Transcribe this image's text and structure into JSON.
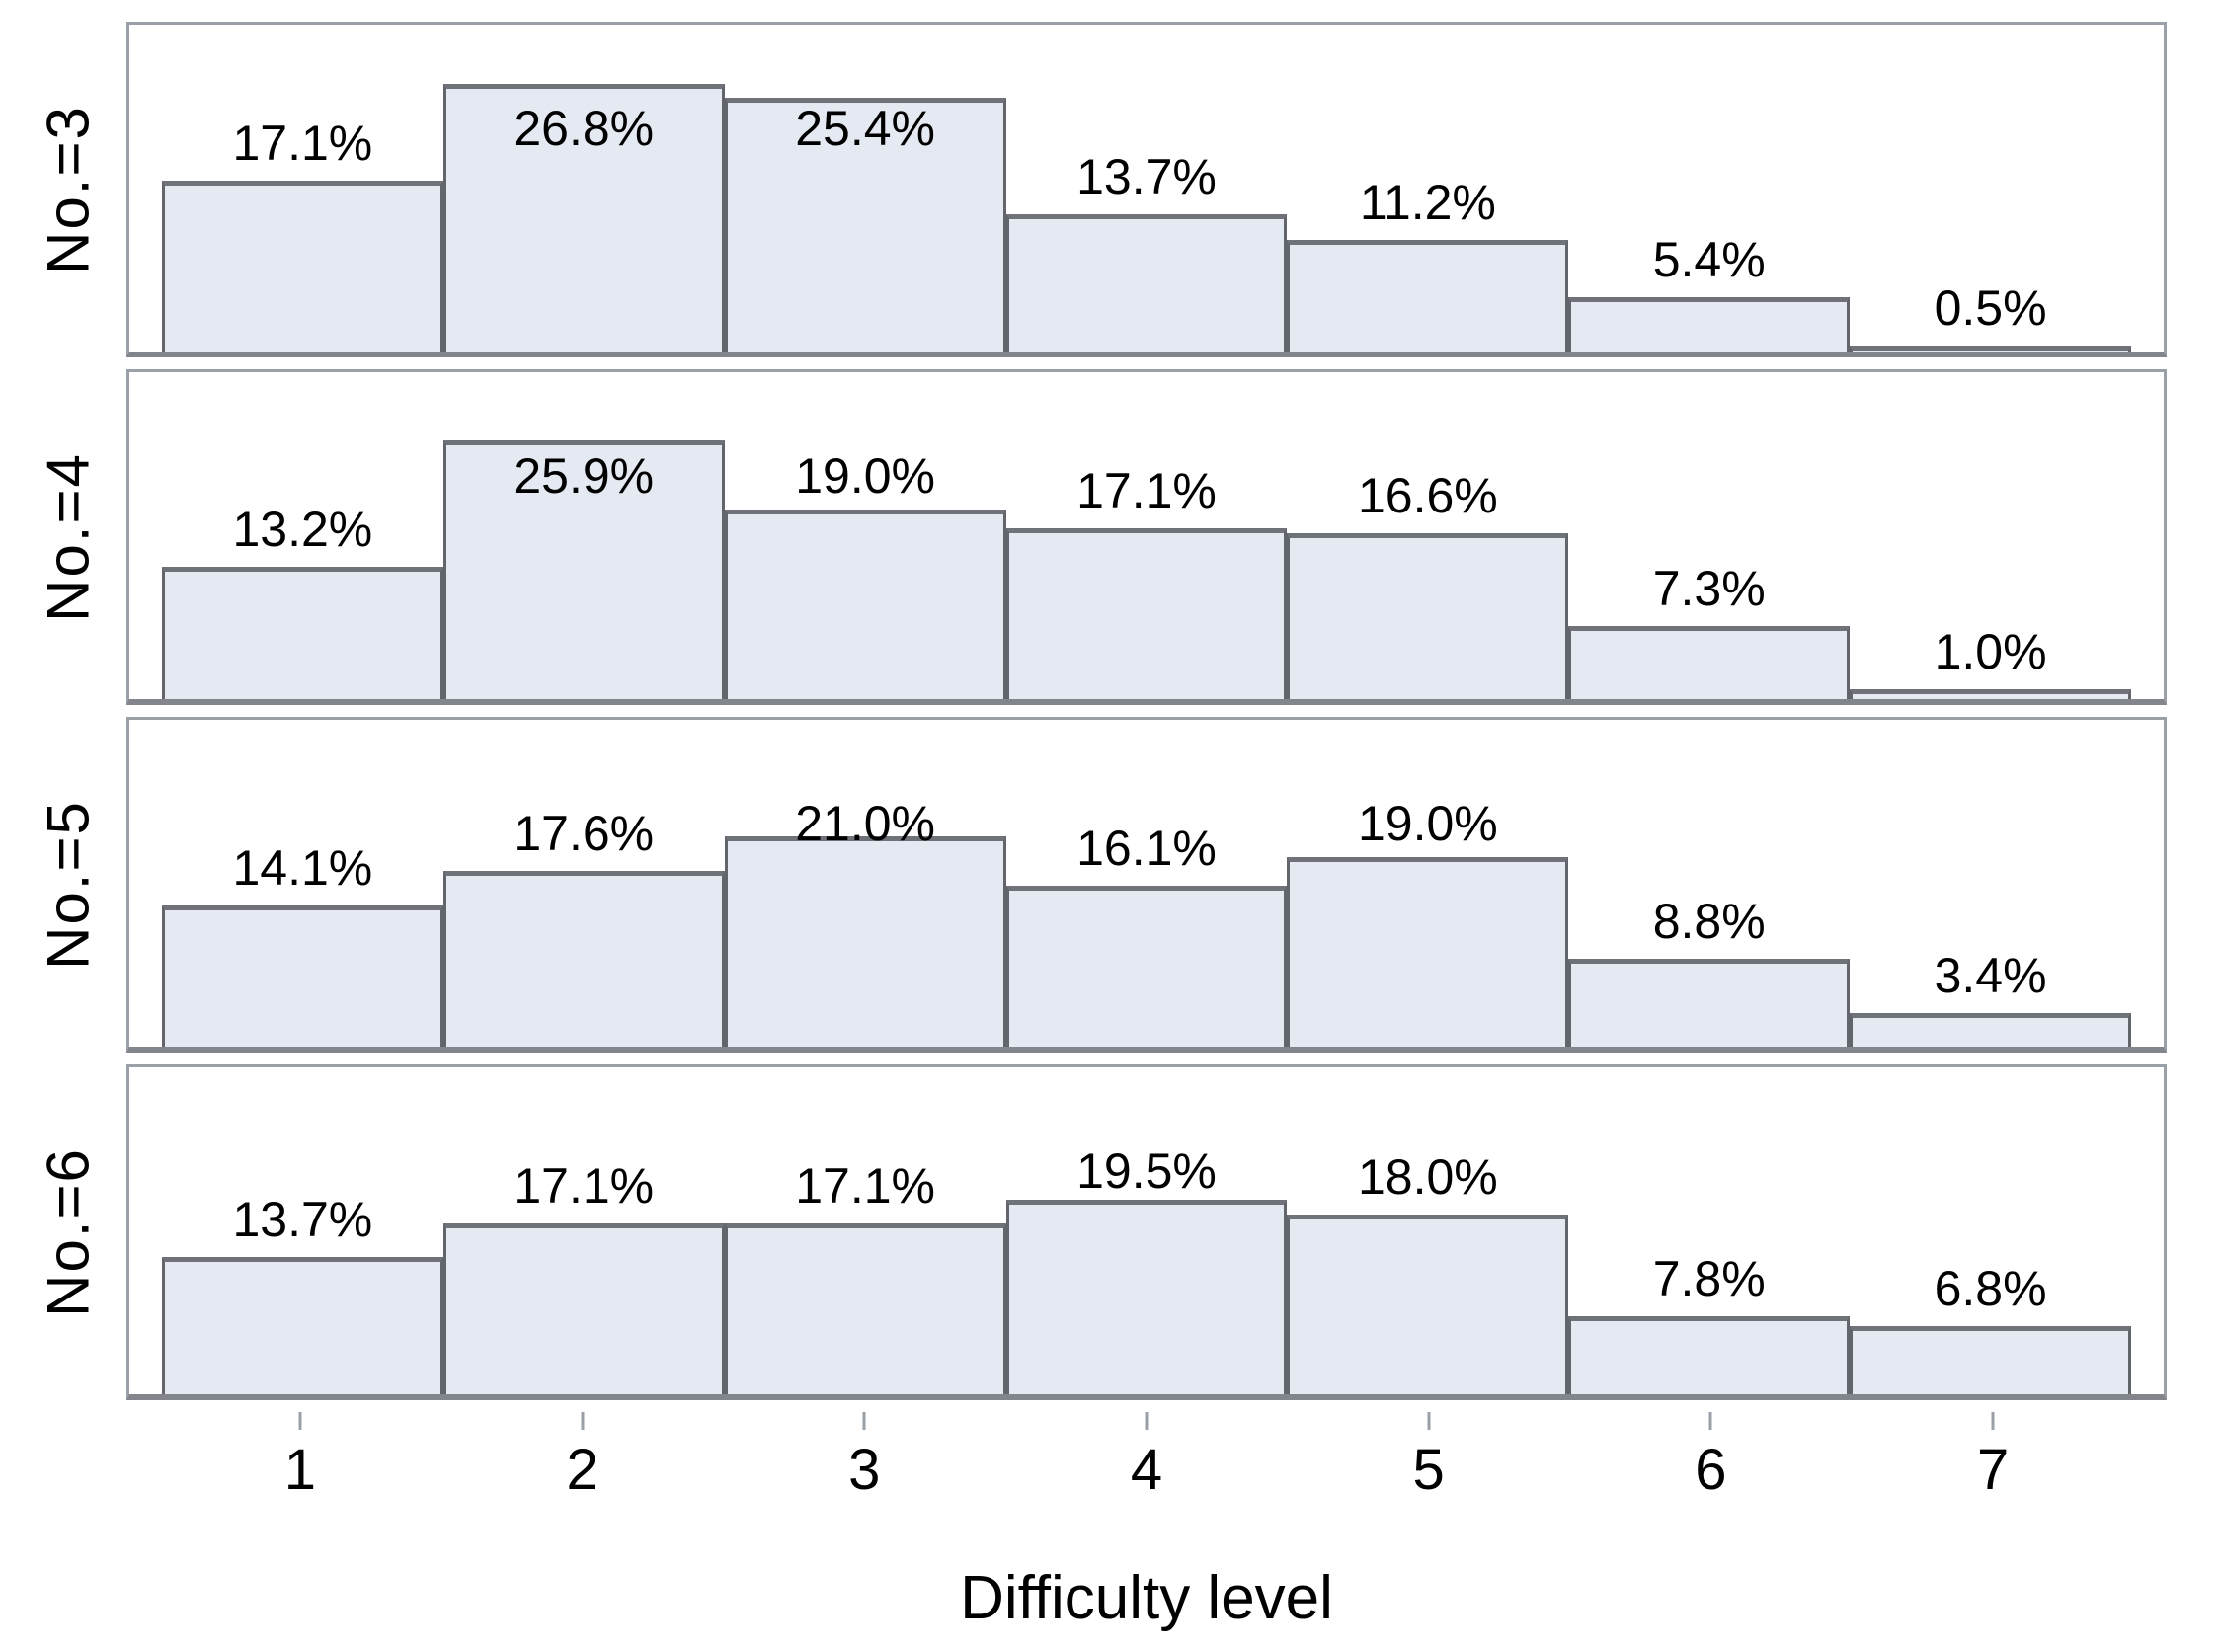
{
  "chart_data": {
    "type": "bar",
    "layout": "faceted-rows-histogram",
    "categories": [
      "1",
      "2",
      "3",
      "4",
      "5",
      "6",
      "7"
    ],
    "series": [
      {
        "name": "No.=3",
        "values": [
          17.1,
          26.8,
          25.4,
          13.7,
          11.2,
          5.4,
          0.5
        ]
      },
      {
        "name": "No.=4",
        "values": [
          13.2,
          25.9,
          19.0,
          17.1,
          16.6,
          7.3,
          1.0
        ]
      },
      {
        "name": "No.=5",
        "values": [
          14.1,
          17.6,
          21.0,
          16.1,
          19.0,
          8.8,
          3.4
        ]
      },
      {
        "name": "No.=6",
        "values": [
          13.7,
          17.1,
          17.1,
          19.5,
          18.0,
          7.8,
          6.8
        ]
      }
    ],
    "title": "",
    "xlabel": "Difficulty level",
    "ylabel": "",
    "ylim": [
      0,
      32.6
    ],
    "grid": false,
    "legend": "none",
    "value_label_suffix": "%",
    "value_label_decimals": 1,
    "colors": {
      "bar_fill": "#e5e9f2",
      "bar_border": "#63656c",
      "panel_border": "#99a0a7",
      "panel_border_bottom": "#82868c",
      "tick": "#99a0a7",
      "text": "#000000",
      "background": "#ffffff"
    }
  }
}
